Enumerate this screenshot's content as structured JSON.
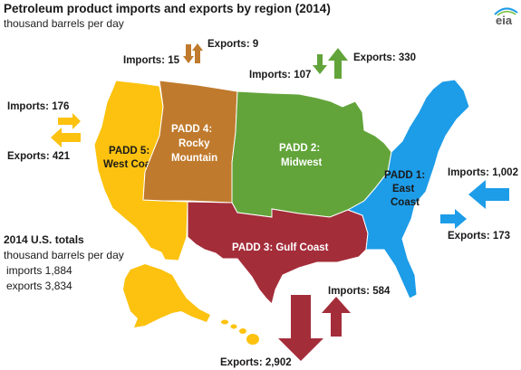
{
  "title": "Petroleum product imports and exports by region (2014)",
  "subtitle": "thousand barrels per day",
  "logo_text": "eia",
  "totals": {
    "heading": "2014 U.S. totals",
    "unit": "thousand barrels per day",
    "imports": "imports 1,884",
    "exports": "exports 3,834"
  },
  "regions": {
    "padd1": {
      "name_line1": "PADD 1:",
      "name_line2": "East",
      "name_line3": "Coast",
      "color": "#1d9ce8",
      "imports_label": "Imports: 1,002",
      "exports_label": "Exports: 173",
      "imports": 1002,
      "exports": 173
    },
    "padd2": {
      "name_line1": "PADD 2:",
      "name_line2": "Midwest",
      "color": "#62a43a",
      "imports_label": "Imports: 107",
      "exports_label": "Exports: 330",
      "imports": 107,
      "exports": 330
    },
    "padd3": {
      "name_line1": "PADD 3: Gulf Coast",
      "color": "#a42d3a",
      "imports_label": "Imports: 584",
      "exports_label": "Exports: 2,902",
      "imports": 584,
      "exports": 2902
    },
    "padd4": {
      "name_line1": "PADD 4:",
      "name_line2": "Rocky",
      "name_line3": "Mountain",
      "color": "#c07a2d",
      "imports_label": "Imports: 15",
      "exports_label": "Exports: 9",
      "imports": 15,
      "exports": 9
    },
    "padd5": {
      "name_line1": "PADD 5:",
      "name_line2": "West Coast",
      "color": "#fcc20f",
      "imports_label": "Imports: 176",
      "exports_label": "Exports: 421",
      "imports": 176,
      "exports": 421
    }
  }
}
